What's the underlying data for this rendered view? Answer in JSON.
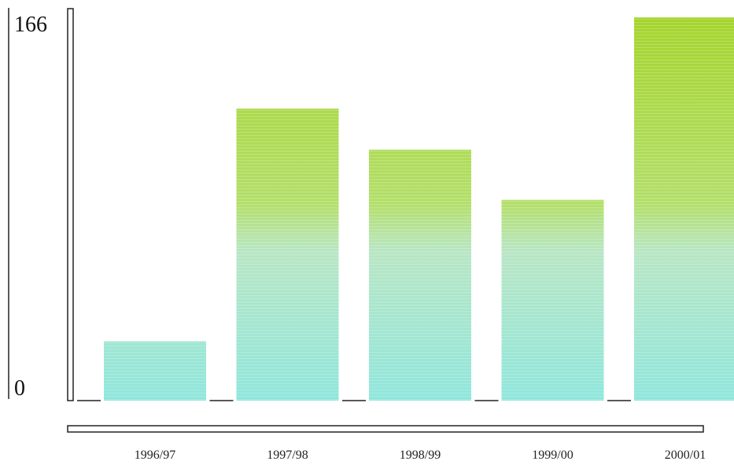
{
  "chart_data": {
    "type": "bar",
    "categories": [
      "1996/97",
      "1997/98",
      "1998/99",
      "1999/00",
      "2000/01"
    ],
    "values": [
      26,
      128,
      110,
      88,
      168
    ],
    "ylim": [
      0,
      166
    ],
    "y_tick_labels": [
      "0",
      "166"
    ],
    "grid": false,
    "legend": "none",
    "bar_colors": {
      "bottom": "#8fe6dc",
      "middle": "#bfe2b0",
      "top": "#a3d42a"
    },
    "axis_color": "#222222"
  }
}
